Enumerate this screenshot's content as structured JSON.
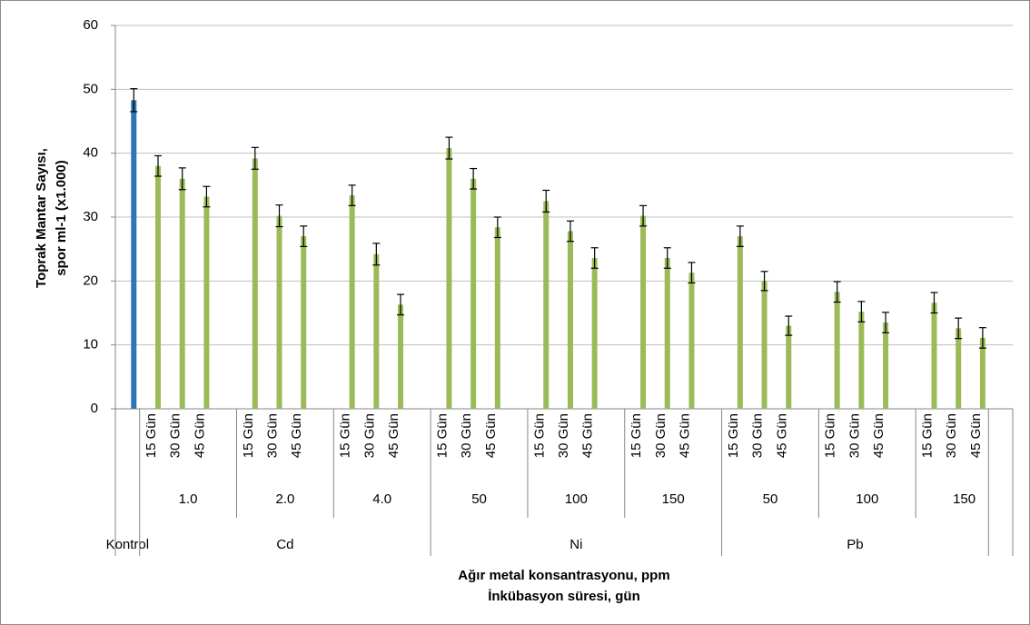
{
  "chart_data": {
    "type": "bar",
    "y_label": [
      "Toprak Mantar Sayısı,",
      "spor ml-1 (x1.000)"
    ],
    "x_label": [
      "Ağır metal konsantrasyonu, ppm",
      "İnkübasyon süresi, gün"
    ],
    "ylim": [
      0,
      60
    ],
    "yticks": [
      0,
      10,
      20,
      30,
      40,
      50,
      60
    ],
    "grid": true,
    "color": "#9bbb59",
    "control_color": "#2e75b6",
    "groups": [
      {
        "name": "Kontrol",
        "values": [
          48.3
        ],
        "errors": [
          1.8
        ]
      },
      {
        "name": "Cd",
        "subgroups": [
          {
            "name": "1.0",
            "categories": [
              "15 Gün",
              "30 Gün",
              "45 Gün"
            ],
            "values": [
              38,
              36,
              33.2
            ],
            "errors": [
              1.6,
              1.7,
              1.6
            ]
          },
          {
            "name": "2.0",
            "categories": [
              "15 Gün",
              "30 Gün",
              "45 Gün"
            ],
            "values": [
              39.2,
              30.2,
              27
            ],
            "errors": [
              1.7,
              1.7,
              1.6
            ]
          },
          {
            "name": "4.0",
            "categories": [
              "15 Gün",
              "30 Gün",
              "45 Gün"
            ],
            "values": [
              33.4,
              24.2,
              16.3
            ],
            "errors": [
              1.6,
              1.7,
              1.6
            ]
          }
        ]
      },
      {
        "name": "Ni",
        "subgroups": [
          {
            "name": "50",
            "categories": [
              "15 Gün",
              "30 Gün",
              "45 Gün"
            ],
            "values": [
              40.8,
              36,
              28.4
            ],
            "errors": [
              1.7,
              1.6,
              1.6
            ]
          },
          {
            "name": "100",
            "categories": [
              "15 Gün",
              "30 Gün",
              "45 Gün"
            ],
            "values": [
              32.5,
              27.8,
              23.6
            ],
            "errors": [
              1.7,
              1.6,
              1.6
            ]
          },
          {
            "name": "150",
            "categories": [
              "15 Gün",
              "30 Gün",
              "45 Gün"
            ],
            "values": [
              30.2,
              23.6,
              21.3
            ],
            "errors": [
              1.6,
              1.6,
              1.6
            ]
          }
        ]
      },
      {
        "name": "Pb",
        "subgroups": [
          {
            "name": "50",
            "categories": [
              "15 Gün",
              "30 Gün",
              "45 Gün"
            ],
            "values": [
              27,
              20,
              13
            ],
            "errors": [
              1.6,
              1.5,
              1.5
            ]
          },
          {
            "name": "100",
            "categories": [
              "15 Gün",
              "30 Gün",
              "45 Gün"
            ],
            "values": [
              18.3,
              15.2,
              13.5
            ],
            "errors": [
              1.6,
              1.6,
              1.6
            ]
          },
          {
            "name": "150",
            "categories": [
              "15 Gün",
              "30 Gün",
              "45 Gün"
            ],
            "values": [
              16.6,
              12.6,
              11.1
            ],
            "errors": [
              1.6,
              1.6,
              1.6
            ]
          }
        ]
      }
    ]
  }
}
